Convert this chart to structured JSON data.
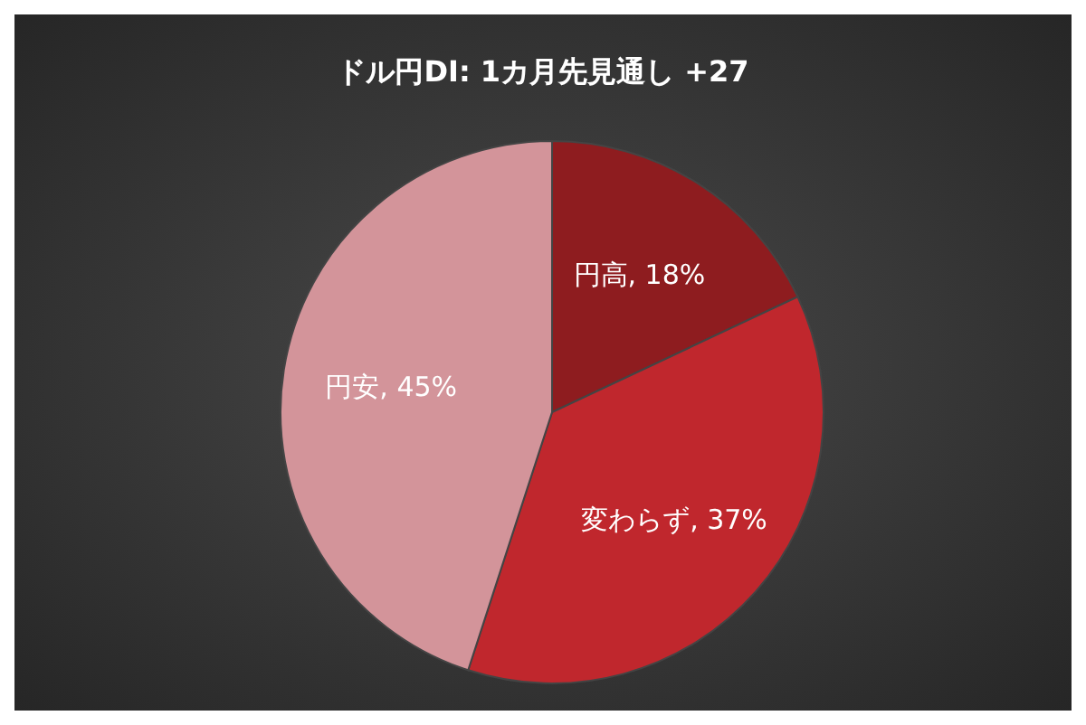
{
  "chart_data": {
    "type": "pie",
    "title": "ドル円DI: 1カ月先見通し +27",
    "categories": [
      "円高",
      "変わらず",
      "円安"
    ],
    "values": [
      18,
      37,
      45
    ],
    "value_labels": [
      "18%",
      "37%",
      "45%"
    ],
    "colors": [
      "#8e1c1f",
      "#c0272d",
      "#d3949a"
    ],
    "legend": false
  }
}
